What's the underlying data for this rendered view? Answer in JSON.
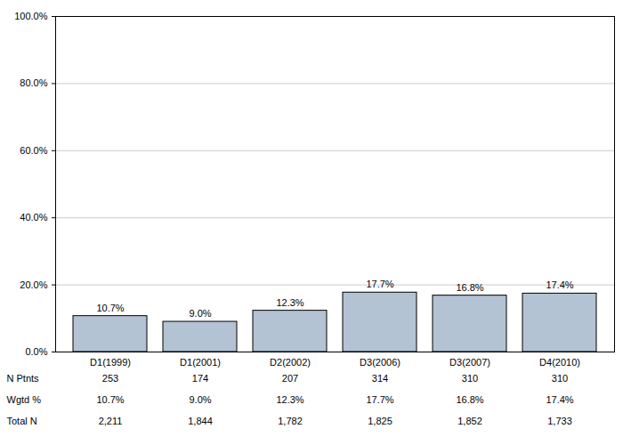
{
  "chart_data": {
    "type": "bar",
    "categories": [
      "D1(1999)",
      "D1(2001)",
      "D2(2002)",
      "D3(2006)",
      "D3(2007)",
      "D4(2010)"
    ],
    "values": [
      10.7,
      9.0,
      12.3,
      17.7,
      16.8,
      17.4
    ],
    "value_labels": [
      "10.7%",
      "9.0%",
      "12.3%",
      "17.7%",
      "16.8%",
      "17.4%"
    ],
    "data_labels": true,
    "color": "#b3c3d3",
    "ylim": [
      0,
      100
    ],
    "yticks": [
      {
        "value": 0,
        "label": "0.0%"
      },
      {
        "value": 20,
        "label": "20.0%"
      },
      {
        "value": 40,
        "label": "40.0%"
      },
      {
        "value": 60,
        "label": "60.0%"
      },
      {
        "value": 80,
        "label": "80.0%"
      },
      {
        "value": 100,
        "label": "100.0%"
      }
    ],
    "grid": true,
    "table": {
      "rows": [
        {
          "label": "N Ptnts",
          "values": [
            253,
            174,
            207,
            314,
            310,
            310
          ]
        },
        {
          "label": "Wgtd %",
          "values": [
            10.7,
            9.0,
            12.3,
            17.7,
            16.8,
            17.4
          ],
          "value_labels": [
            "10.7%",
            "9.0%",
            "12.3%",
            "17.7%",
            "16.8%",
            "17.4%"
          ]
        },
        {
          "label": "Total N",
          "values": [
            2211,
            1844,
            1782,
            1825,
            1852,
            1733
          ],
          "value_labels": [
            "2,211",
            "1,844",
            "1,782",
            "1,825",
            "1,852",
            "1,733"
          ]
        }
      ]
    }
  }
}
